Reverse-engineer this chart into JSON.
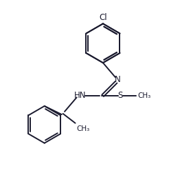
{
  "line_color": "#1a1a2e",
  "bg_color": "#ffffff",
  "figsize": [
    2.46,
    2.54
  ],
  "dpi": 100,
  "bond_lw": 1.4,
  "font_size": 8.5,
  "font_size_small": 7.5,
  "xlim": [
    0,
    8.2
  ],
  "ylim": [
    0,
    8.5
  ]
}
